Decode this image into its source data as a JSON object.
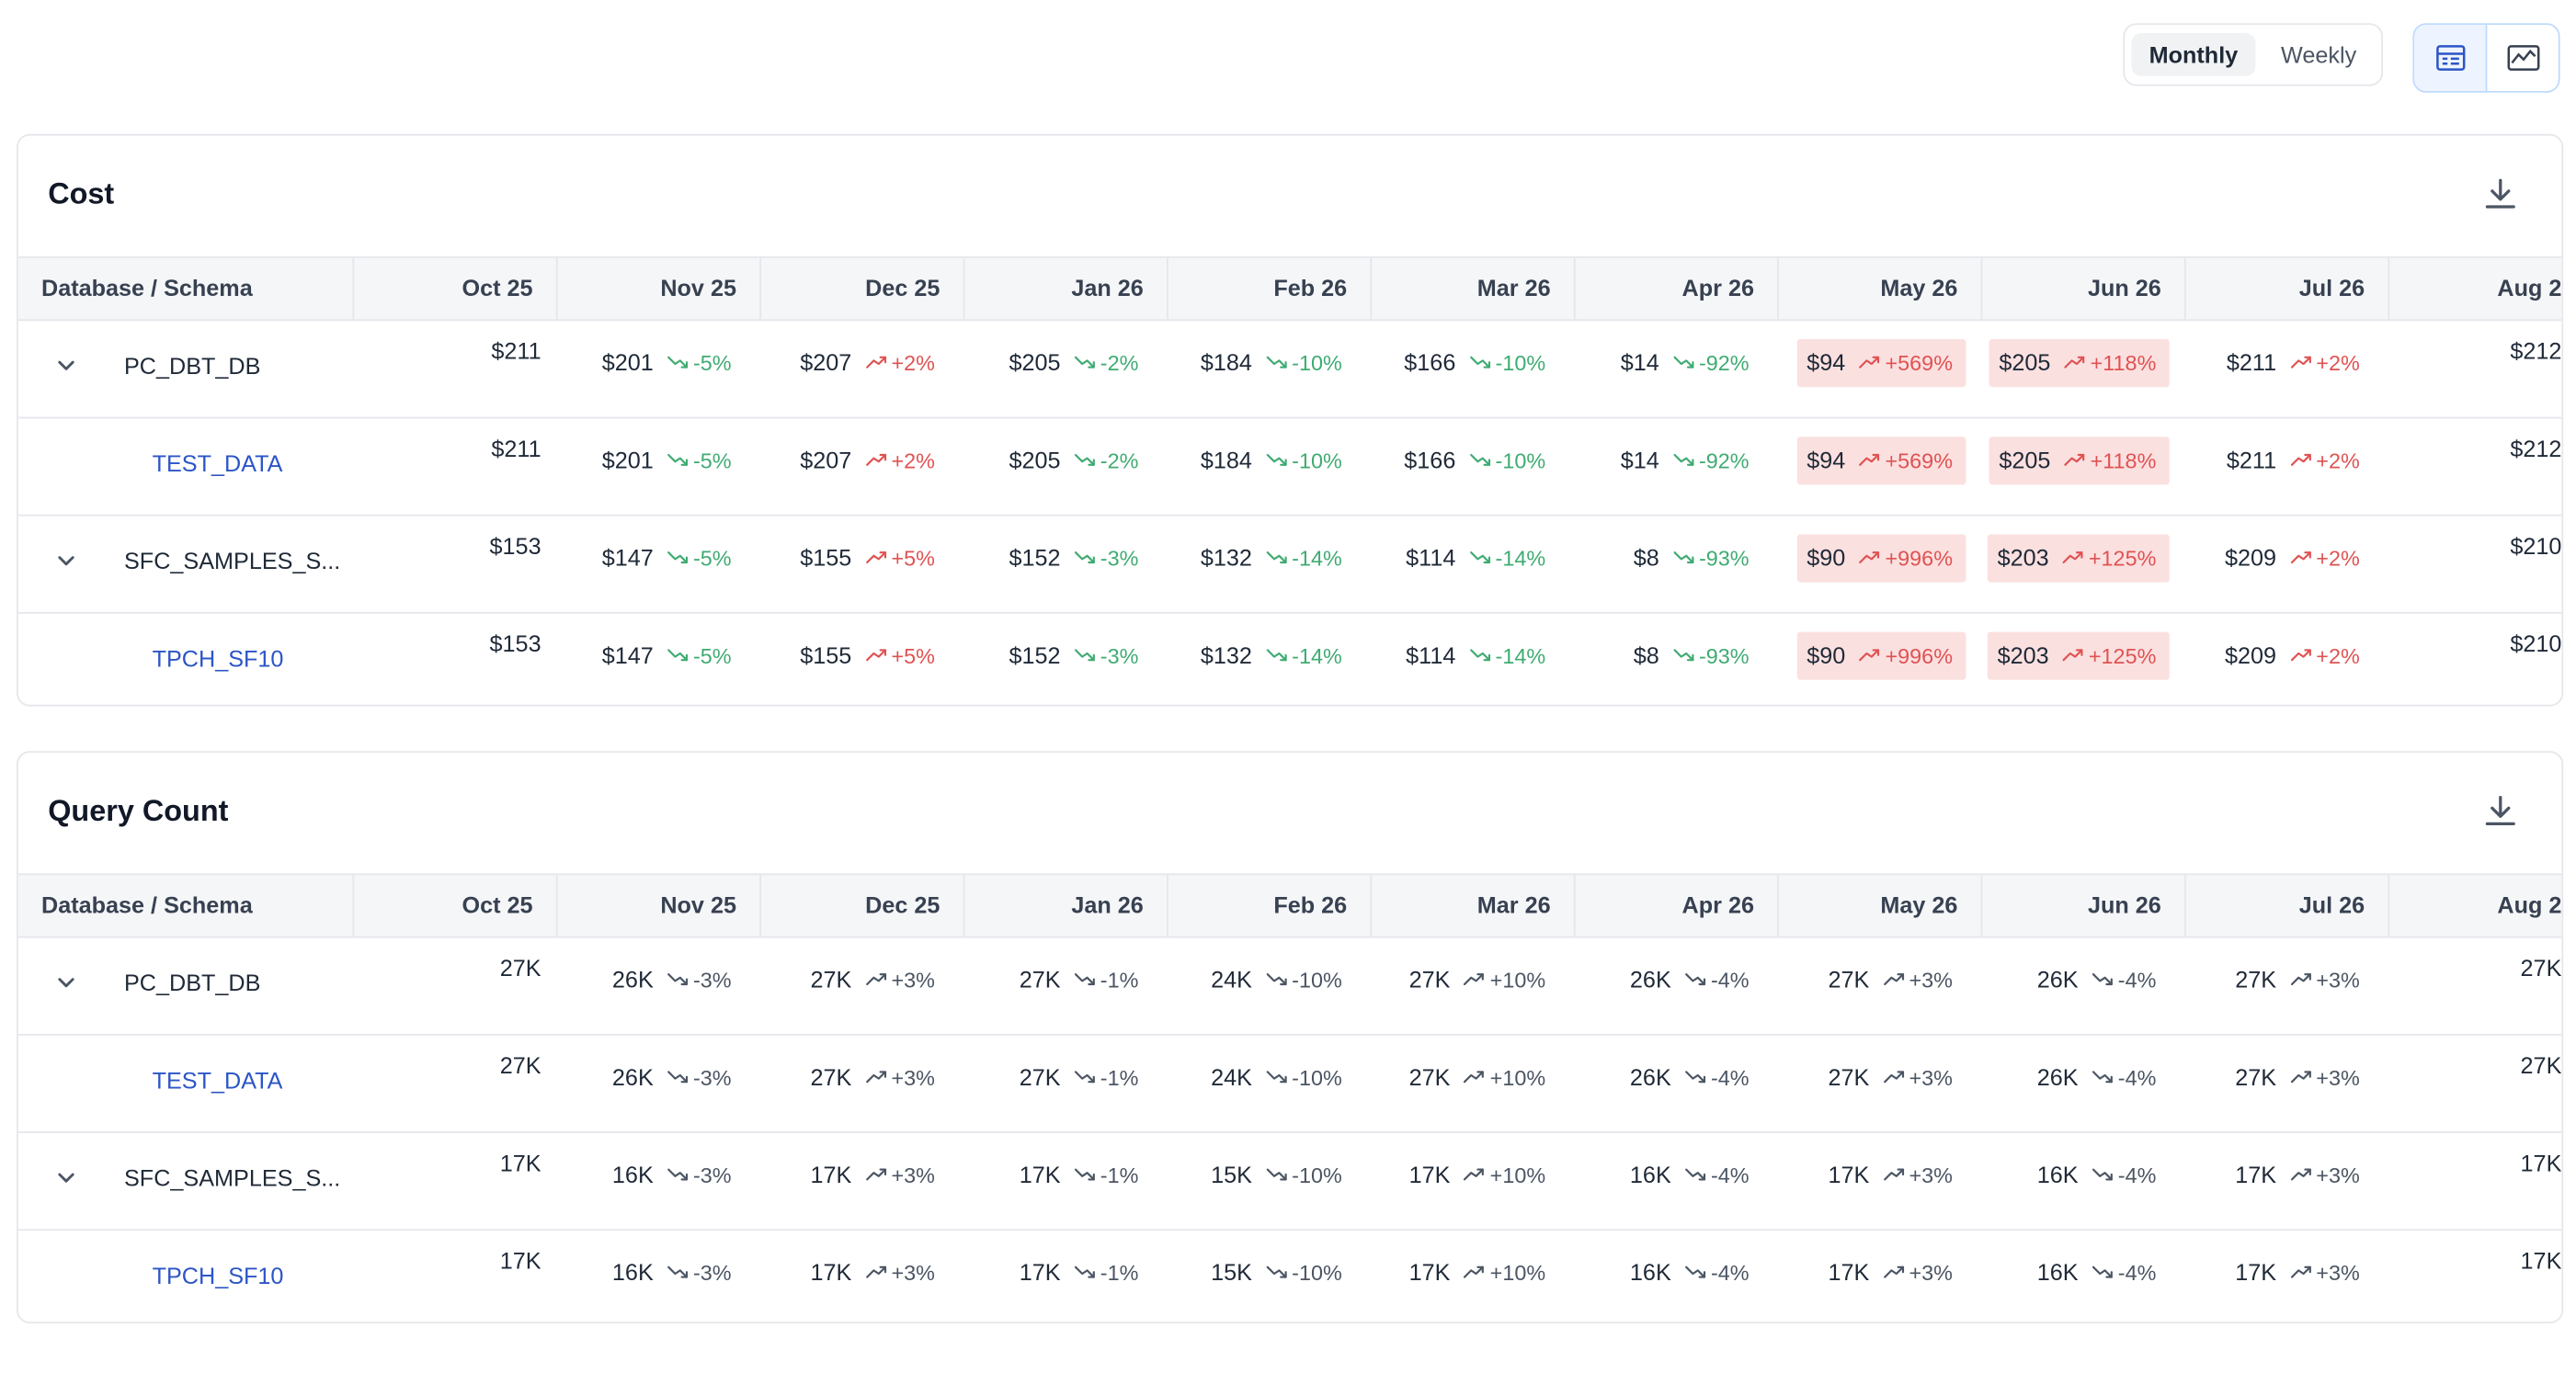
{
  "toolbar": {
    "period_options": [
      "Monthly",
      "Weekly"
    ],
    "selected_period": "Monthly",
    "view_icons": [
      "table-view-icon",
      "chart-view-icon"
    ],
    "accent_color": "#2c55c6"
  },
  "columns": [
    "Database / Schema",
    "Oct 25",
    "Nov 25",
    "Dec 25",
    "Jan 26",
    "Feb 26",
    "Mar 26",
    "Apr 26",
    "May 26",
    "Jun 26",
    "Jul 26",
    "Aug 2"
  ],
  "cost": {
    "title": "Cost",
    "highlight_color": "#fbe0e0",
    "rows": [
      {
        "name": "PC_DBT_DB",
        "level": "database",
        "first": "$211",
        "cells": [
          {
            "v": "$201",
            "d": "-5%",
            "dir": "down"
          },
          {
            "v": "$207",
            "d": "+2%",
            "dir": "up"
          },
          {
            "v": "$205",
            "d": "-2%",
            "dir": "down"
          },
          {
            "v": "$184",
            "d": "-10%",
            "dir": "down"
          },
          {
            "v": "$166",
            "d": "-10%",
            "dir": "down"
          },
          {
            "v": "$14",
            "d": "-92%",
            "dir": "down"
          },
          {
            "v": "$94",
            "d": "+569%",
            "dir": "up",
            "hl": true
          },
          {
            "v": "$205",
            "d": "+118%",
            "dir": "up",
            "hl": true
          },
          {
            "v": "$211",
            "d": "+2%",
            "dir": "up"
          }
        ],
        "last": "$212"
      },
      {
        "name": "TEST_DATA",
        "level": "schema",
        "first": "$211",
        "cells": [
          {
            "v": "$201",
            "d": "-5%",
            "dir": "down"
          },
          {
            "v": "$207",
            "d": "+2%",
            "dir": "up"
          },
          {
            "v": "$205",
            "d": "-2%",
            "dir": "down"
          },
          {
            "v": "$184",
            "d": "-10%",
            "dir": "down"
          },
          {
            "v": "$166",
            "d": "-10%",
            "dir": "down"
          },
          {
            "v": "$14",
            "d": "-92%",
            "dir": "down"
          },
          {
            "v": "$94",
            "d": "+569%",
            "dir": "up",
            "hl": true
          },
          {
            "v": "$205",
            "d": "+118%",
            "dir": "up",
            "hl": true
          },
          {
            "v": "$211",
            "d": "+2%",
            "dir": "up"
          }
        ],
        "last": "$212"
      },
      {
        "name": "SFC_SAMPLES_S...",
        "level": "database",
        "first": "$153",
        "cells": [
          {
            "v": "$147",
            "d": "-5%",
            "dir": "down"
          },
          {
            "v": "$155",
            "d": "+5%",
            "dir": "up"
          },
          {
            "v": "$152",
            "d": "-3%",
            "dir": "down"
          },
          {
            "v": "$132",
            "d": "-14%",
            "dir": "down"
          },
          {
            "v": "$114",
            "d": "-14%",
            "dir": "down"
          },
          {
            "v": "$8",
            "d": "-93%",
            "dir": "down"
          },
          {
            "v": "$90",
            "d": "+996%",
            "dir": "up",
            "hl": true
          },
          {
            "v": "$203",
            "d": "+125%",
            "dir": "up",
            "hl": true
          },
          {
            "v": "$209",
            "d": "+2%",
            "dir": "up"
          }
        ],
        "last": "$210"
      },
      {
        "name": "TPCH_SF10",
        "level": "schema",
        "first": "$153",
        "cells": [
          {
            "v": "$147",
            "d": "-5%",
            "dir": "down"
          },
          {
            "v": "$155",
            "d": "+5%",
            "dir": "up"
          },
          {
            "v": "$152",
            "d": "-3%",
            "dir": "down"
          },
          {
            "v": "$132",
            "d": "-14%",
            "dir": "down"
          },
          {
            "v": "$114",
            "d": "-14%",
            "dir": "down"
          },
          {
            "v": "$8",
            "d": "-93%",
            "dir": "down"
          },
          {
            "v": "$90",
            "d": "+996%",
            "dir": "up",
            "hl": true
          },
          {
            "v": "$203",
            "d": "+125%",
            "dir": "up",
            "hl": true
          },
          {
            "v": "$209",
            "d": "+2%",
            "dir": "up"
          }
        ],
        "last": "$210"
      }
    ]
  },
  "query_count": {
    "title": "Query Count",
    "rows": [
      {
        "name": "PC_DBT_DB",
        "level": "database",
        "first": "27K",
        "cells": [
          {
            "v": "26K",
            "d": "-3%",
            "dir": "down"
          },
          {
            "v": "27K",
            "d": "+3%",
            "dir": "up"
          },
          {
            "v": "27K",
            "d": "-1%",
            "dir": "down"
          },
          {
            "v": "24K",
            "d": "-10%",
            "dir": "down"
          },
          {
            "v": "27K",
            "d": "+10%",
            "dir": "up"
          },
          {
            "v": "26K",
            "d": "-4%",
            "dir": "down"
          },
          {
            "v": "27K",
            "d": "+3%",
            "dir": "up"
          },
          {
            "v": "26K",
            "d": "-4%",
            "dir": "down"
          },
          {
            "v": "27K",
            "d": "+3%",
            "dir": "up"
          }
        ],
        "last": "27K"
      },
      {
        "name": "TEST_DATA",
        "level": "schema",
        "first": "27K",
        "cells": [
          {
            "v": "26K",
            "d": "-3%",
            "dir": "down"
          },
          {
            "v": "27K",
            "d": "+3%",
            "dir": "up"
          },
          {
            "v": "27K",
            "d": "-1%",
            "dir": "down"
          },
          {
            "v": "24K",
            "d": "-10%",
            "dir": "down"
          },
          {
            "v": "27K",
            "d": "+10%",
            "dir": "up"
          },
          {
            "v": "26K",
            "d": "-4%",
            "dir": "down"
          },
          {
            "v": "27K",
            "d": "+3%",
            "dir": "up"
          },
          {
            "v": "26K",
            "d": "-4%",
            "dir": "down"
          },
          {
            "v": "27K",
            "d": "+3%",
            "dir": "up"
          }
        ],
        "last": "27K"
      },
      {
        "name": "SFC_SAMPLES_S...",
        "level": "database",
        "first": "17K",
        "cells": [
          {
            "v": "16K",
            "d": "-3%",
            "dir": "down"
          },
          {
            "v": "17K",
            "d": "+3%",
            "dir": "up"
          },
          {
            "v": "17K",
            "d": "-1%",
            "dir": "down"
          },
          {
            "v": "15K",
            "d": "-10%",
            "dir": "down"
          },
          {
            "v": "17K",
            "d": "+10%",
            "dir": "up"
          },
          {
            "v": "16K",
            "d": "-4%",
            "dir": "down"
          },
          {
            "v": "17K",
            "d": "+3%",
            "dir": "up"
          },
          {
            "v": "16K",
            "d": "-4%",
            "dir": "down"
          },
          {
            "v": "17K",
            "d": "+3%",
            "dir": "up"
          }
        ],
        "last": "17K"
      },
      {
        "name": "TPCH_SF10",
        "level": "schema",
        "first": "17K",
        "cells": [
          {
            "v": "16K",
            "d": "-3%",
            "dir": "down"
          },
          {
            "v": "17K",
            "d": "+3%",
            "dir": "up"
          },
          {
            "v": "17K",
            "d": "-1%",
            "dir": "down"
          },
          {
            "v": "15K",
            "d": "-10%",
            "dir": "down"
          },
          {
            "v": "17K",
            "d": "+10%",
            "dir": "up"
          },
          {
            "v": "16K",
            "d": "-4%",
            "dir": "down"
          },
          {
            "v": "17K",
            "d": "+3%",
            "dir": "up"
          },
          {
            "v": "16K",
            "d": "-4%",
            "dir": "down"
          },
          {
            "v": "17K",
            "d": "+3%",
            "dir": "up"
          }
        ],
        "last": "17K"
      }
    ]
  }
}
